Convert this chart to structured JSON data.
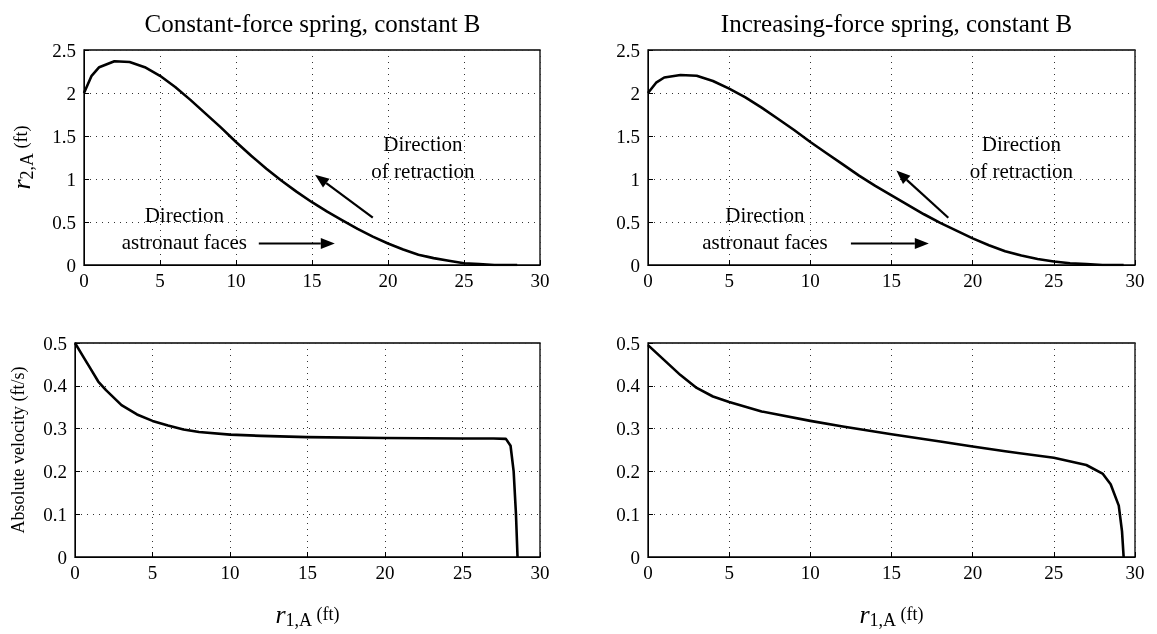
{
  "chart_data": [
    {
      "type": "line",
      "title": "Constant-force spring, constant B",
      "ylabel": "r$_{2,A}$ (ft)",
      "annotations": [
        "Direction\nof retraction",
        "Direction\nastronaut faces"
      ],
      "grid": true,
      "xlim": [
        0,
        30
      ],
      "xticks": [
        0,
        5,
        10,
        15,
        20,
        25,
        30
      ],
      "ylim": [
        0,
        2.5
      ],
      "yticks": [
        0,
        0.5,
        1,
        1.5,
        2,
        2.5
      ],
      "series": [
        {
          "color": "#000000",
          "x": [
            0,
            0.5,
            1,
            2,
            3,
            4,
            5,
            6,
            7,
            8,
            9,
            10,
            11,
            12,
            13,
            14,
            15,
            16,
            17,
            18,
            19,
            20,
            21,
            22,
            23,
            24,
            25,
            26,
            27,
            28,
            28.5
          ],
          "values": [
            2.0,
            2.2,
            2.3,
            2.37,
            2.36,
            2.3,
            2.2,
            2.07,
            1.92,
            1.76,
            1.6,
            1.43,
            1.27,
            1.12,
            0.98,
            0.85,
            0.73,
            0.62,
            0.52,
            0.42,
            0.33,
            0.25,
            0.18,
            0.12,
            0.08,
            0.05,
            0.02,
            0.01,
            0,
            0,
            0
          ]
        }
      ]
    },
    {
      "type": "line",
      "title": "Increasing-force spring, constant B",
      "annotations": [
        "Direction\nof retraction",
        "Direction\nastronaut faces"
      ],
      "grid": true,
      "xlim": [
        0,
        30
      ],
      "xticks": [
        0,
        5,
        10,
        15,
        20,
        25,
        30
      ],
      "ylim": [
        0,
        2.5
      ],
      "yticks": [
        0,
        0.5,
        1,
        1.5,
        2,
        2.5
      ],
      "series": [
        {
          "color": "#000000",
          "x": [
            0,
            0.5,
            1,
            2,
            3,
            4,
            5,
            6,
            7,
            8,
            9,
            10,
            11,
            12,
            13,
            14,
            15,
            16,
            17,
            18,
            19,
            20,
            21,
            22,
            23,
            24,
            25,
            26,
            27,
            28,
            29,
            29.3
          ],
          "values": [
            2.0,
            2.12,
            2.18,
            2.21,
            2.2,
            2.14,
            2.05,
            1.95,
            1.83,
            1.7,
            1.57,
            1.43,
            1.3,
            1.17,
            1.04,
            0.92,
            0.81,
            0.7,
            0.59,
            0.49,
            0.4,
            0.31,
            0.23,
            0.16,
            0.11,
            0.07,
            0.04,
            0.02,
            0.01,
            0,
            0,
            0
          ]
        }
      ]
    },
    {
      "type": "line",
      "xlabel": "r$_{1,A}$ (ft)",
      "ylabel": "Absolute velocity (ft/s)",
      "grid": true,
      "xlim": [
        0,
        30
      ],
      "xticks": [
        0,
        5,
        10,
        15,
        20,
        25,
        30
      ],
      "ylim": [
        0,
        0.5
      ],
      "yticks": [
        0,
        0.1,
        0.2,
        0.3,
        0.4,
        0.5
      ],
      "series": [
        {
          "color": "#000000",
          "x": [
            0,
            0.5,
            1,
            1.5,
            2,
            3,
            4,
            5,
            6,
            7,
            8,
            10,
            12,
            15,
            20,
            25,
            27,
            27.8,
            28.1,
            28.3,
            28.45,
            28.55
          ],
          "values": [
            0.5,
            0.47,
            0.44,
            0.41,
            0.39,
            0.355,
            0.333,
            0.318,
            0.307,
            0.298,
            0.292,
            0.286,
            0.283,
            0.28,
            0.278,
            0.277,
            0.277,
            0.276,
            0.26,
            0.2,
            0.1,
            0
          ]
        }
      ]
    },
    {
      "type": "line",
      "xlabel": "r$_{1,A}$ (ft)",
      "grid": true,
      "xlim": [
        0,
        30
      ],
      "xticks": [
        0,
        5,
        10,
        15,
        20,
        25,
        30
      ],
      "ylim": [
        0,
        0.5
      ],
      "yticks": [
        0,
        0.1,
        0.2,
        0.3,
        0.4,
        0.5
      ],
      "series": [
        {
          "color": "#000000",
          "x": [
            0,
            1,
            2,
            3,
            4,
            5,
            7,
            10,
            12,
            15,
            18,
            20,
            22,
            25,
            27,
            28,
            28.5,
            29,
            29.2,
            29.3
          ],
          "values": [
            0.495,
            0.46,
            0.425,
            0.395,
            0.375,
            0.362,
            0.34,
            0.318,
            0.305,
            0.287,
            0.27,
            0.258,
            0.247,
            0.232,
            0.215,
            0.195,
            0.17,
            0.12,
            0.06,
            0
          ]
        }
      ]
    }
  ]
}
